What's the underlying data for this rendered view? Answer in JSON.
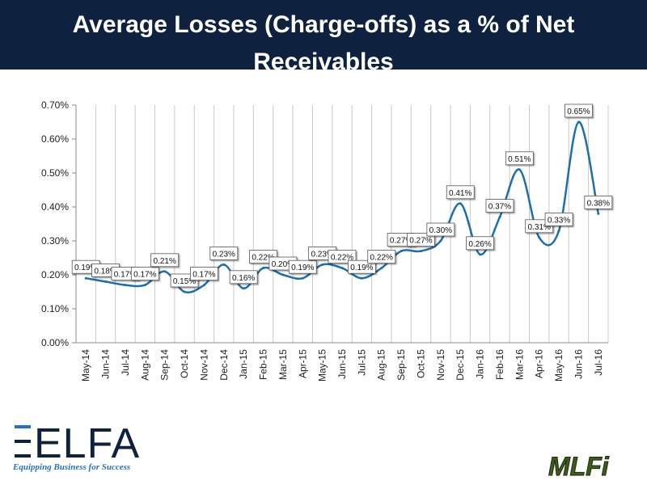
{
  "header": {
    "title": "Average Losses (Charge-offs) as a % of Net Receivables"
  },
  "logos": {
    "elfa": "ELFA",
    "elfa_tagline": "Equipping Business for Success",
    "mlfi": "MLFi"
  },
  "colors": {
    "header_bg": "#0e2240",
    "line": "#1a6faf",
    "grid": "#c8c8c8",
    "elfa_blue": "#2a73b8"
  },
  "chart_data": {
    "type": "line",
    "smooth": true,
    "title": "",
    "xlabel": "",
    "ylabel": "",
    "grid": "vertical",
    "ylim": [
      0,
      0.7
    ],
    "yticks": [
      "0.00%",
      "0.10%",
      "0.20%",
      "0.30%",
      "0.40%",
      "0.50%",
      "0.60%",
      "0.70%"
    ],
    "categories": [
      "May-14",
      "Jun-14",
      "Jul-14",
      "Aug-14",
      "Sep-14",
      "Oct-14",
      "Nov-14",
      "Dec-14",
      "Jan-15",
      "Feb-15",
      "Mar-15",
      "Apr-15",
      "May-15",
      "Jun-15",
      "Jul-15",
      "Aug-15",
      "Sep-15",
      "Oct-15",
      "Nov-15",
      "Dec-15",
      "Jan-16",
      "Feb-16",
      "Mar-16",
      "Apr-16",
      "May-16",
      "Jun-16",
      "Jul-16"
    ],
    "values": [
      0.19,
      0.18,
      0.17,
      0.17,
      0.21,
      0.15,
      0.17,
      0.23,
      0.16,
      0.22,
      0.2,
      0.19,
      0.23,
      0.22,
      0.19,
      0.22,
      0.27,
      0.27,
      0.3,
      0.41,
      0.26,
      0.37,
      0.51,
      0.31,
      0.33,
      0.65,
      0.38
    ],
    "data_labels": [
      "0.19%",
      "0.18%",
      "0.17%",
      "0.17%",
      "0.21%",
      "0.15%",
      "0.17%",
      "0.23%",
      "0.16%",
      "0.22%",
      "0.20%",
      "0.19%",
      "0.23%",
      "0.22%",
      "0.19%",
      "0.22%",
      "0.27%",
      "0.27%",
      "0.30%",
      "0.41%",
      "0.26%",
      "0.37%",
      "0.51%",
      "0.31%",
      "0.33%",
      "0.65%",
      "0.38%"
    ]
  }
}
